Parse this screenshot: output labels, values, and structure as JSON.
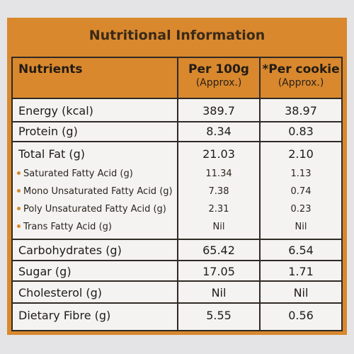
{
  "title": "Nutritional Information",
  "header": {
    "nutrients": "Nutrients",
    "per100g": "Per 100g",
    "per100g_note": "(Approx.)",
    "percookie": "*Per cookie",
    "percookie_note": "(Approx.)"
  },
  "rows": [
    {
      "name": "Energy (kcal)",
      "per100g": "389.7",
      "percookie": "38.97"
    },
    {
      "name": "Protein (g)",
      "per100g": "8.34",
      "percookie": "0.83"
    },
    {
      "name": "Total Fat (g)",
      "per100g": "21.03",
      "percookie": "2.10"
    },
    {
      "name": "Saturated Fatty Acid (g)",
      "per100g": "11.34",
      "percookie": "1.13"
    },
    {
      "name": "Mono Unsaturated Fatty Acid (g)",
      "per100g": "7.38",
      "percookie": "0.74"
    },
    {
      "name": "Poly Unsaturated Fatty Acid (g)",
      "per100g": "2.31",
      "percookie": "0.23"
    },
    {
      "name": "Trans Fatty Acid (g)",
      "per100g": "Nil",
      "percookie": "Nil"
    },
    {
      "name": "Carbohydrates (g)",
      "per100g": "65.42",
      "percookie": "6.54"
    },
    {
      "name": "Sugar (g)",
      "per100g": "17.05",
      "percookie": "1.71"
    },
    {
      "name": "Cholesterol (g)",
      "per100g": "Nil",
      "percookie": "Nil"
    },
    {
      "name": "Dietary Fibre (g)",
      "per100g": "5.55",
      "percookie": "0.56"
    }
  ],
  "colors": {
    "accent": "#d9882e",
    "panel": "#f4f3f1",
    "border": "#2f2a25"
  }
}
